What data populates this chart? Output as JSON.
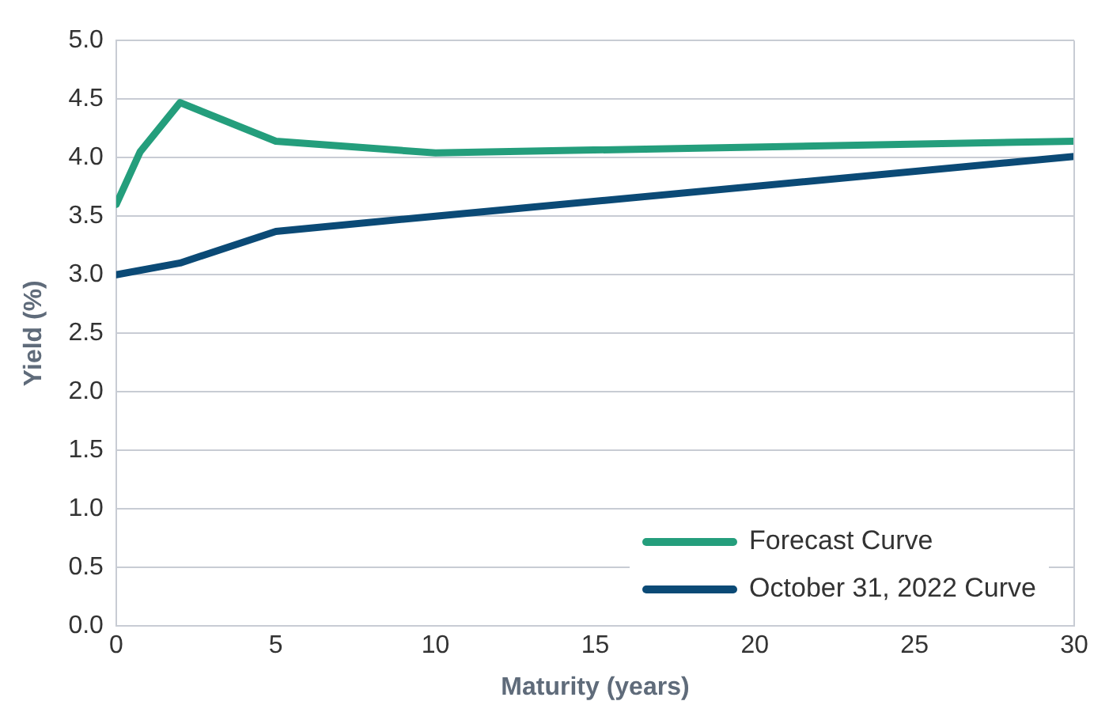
{
  "chart_data": {
    "type": "line",
    "xlabel": "Maturity (years)",
    "ylabel": "Yield (%)",
    "xlim": [
      0,
      30
    ],
    "xticks": [
      0,
      5,
      10,
      15,
      20,
      25,
      30
    ],
    "ylim": [
      0,
      5
    ],
    "yticks": [
      {
        "value": 0,
        "label": "0.0"
      },
      {
        "value": 0.5,
        "label": "0.5"
      },
      {
        "value": 1,
        "label": "1.0"
      },
      {
        "value": 1.5,
        "label": "1.5"
      },
      {
        "value": 2,
        "label": "2.0"
      },
      {
        "value": 2.5,
        "label": "2.5"
      },
      {
        "value": 3,
        "label": "3.0"
      },
      {
        "value": 3.5,
        "label": "3.5"
      },
      {
        "value": 4,
        "label": "4.0"
      },
      {
        "value": 4.5,
        "label": "4.5"
      },
      {
        "value": 5,
        "label": "5.0"
      }
    ],
    "grid": "y",
    "legend": "bottom right",
    "marker": "none",
    "series": [
      {
        "name": "Forecast Curve",
        "color": "#249e7c",
        "x": [
          0,
          0.75,
          2,
          5,
          10,
          30
        ],
        "values": [
          3.6,
          4.05,
          4.47,
          4.14,
          4.04,
          4.14
        ]
      },
      {
        "name": "October 31, 2022 Curve",
        "color": "#0b4a76",
        "x": [
          0,
          2,
          5,
          10,
          30
        ],
        "values": [
          3.0,
          3.1,
          3.37,
          3.5,
          4.01
        ]
      }
    ]
  }
}
